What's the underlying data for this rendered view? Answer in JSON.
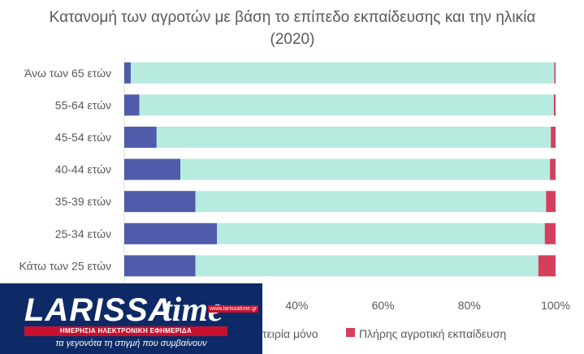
{
  "chart_data": {
    "type": "bar",
    "orientation": "horizontal",
    "stacked": "percent",
    "title": "Κατανομή των αγροτών με βάση το επίπεδο εκπαίδευσης και την ηλικία (2020)",
    "categories": [
      "Άνω των 65 ετών",
      "55-64 ετών",
      "45-54 ετών",
      "40-44 ετών",
      "35-39 ετών",
      "25-34 ετών",
      "Κάτω των 25 ετών"
    ],
    "series": [
      {
        "name": "",
        "color": "#4f5bab",
        "values": [
          1.5,
          3.5,
          7.5,
          13.0,
          16.5,
          21.5,
          16.5
        ]
      },
      {
        "name": "Πρακτική εμπειρία μόνο",
        "color": "#b8ebdf",
        "values": [
          98.2,
          96.1,
          91.4,
          85.7,
          81.3,
          76.0,
          79.5
        ]
      },
      {
        "name": "Πλήρης αγροτική εκπαίδευση",
        "color": "#d43f5e",
        "values": [
          0.3,
          0.4,
          1.1,
          1.3,
          2.2,
          2.5,
          4.0
        ]
      }
    ],
    "xlim": [
      0,
      100
    ],
    "x_ticks": [
      "40%",
      "60%",
      "80%",
      "100%"
    ],
    "legend_visible": [
      "τειρία μόνο",
      "Πλήρης αγροτική εκπαίδευση"
    ],
    "legend_position": "bottom",
    "grid": false
  },
  "logo": {
    "word": "LARISSA",
    "script": "time",
    "site": "www.larissatime.gr",
    "strip": "ΗΜΕΡΗΣΙΑ ΗΛΕΚΤΡΟΝΙΚΗ ΕΦΗΜΕΡΙΔΑ",
    "tagline": "τα γεγονότα τη στιγμή που συμβαίνουν",
    "color": "#0e2a66",
    "accent": "#c8102e"
  }
}
